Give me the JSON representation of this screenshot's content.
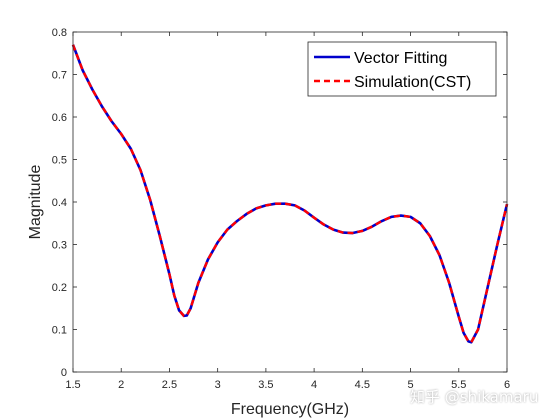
{
  "chart_data": {
    "type": "line",
    "xlabel": "Frequency(GHz)",
    "ylabel": "Magnitude",
    "xlim": [
      1.5,
      6
    ],
    "ylim": [
      0,
      0.8
    ],
    "xticks": [
      1.5,
      2,
      2.5,
      3,
      3.5,
      4,
      4.5,
      5,
      5.5,
      6
    ],
    "xtick_labels": [
      "1.5",
      "2",
      "2.5",
      "3",
      "3.5",
      "4",
      "4.5",
      "5",
      "5.5",
      "6"
    ],
    "yticks": [
      0,
      0.1,
      0.2,
      0.3,
      0.4,
      0.5,
      0.6,
      0.7,
      0.8
    ],
    "ytick_labels": [
      "0",
      "0.1",
      "0.2",
      "0.3",
      "0.4",
      "0.5",
      "0.6",
      "0.7",
      "0.8"
    ],
    "grid": false,
    "legend_position": "top-right",
    "series": [
      {
        "name": "Vector Fitting",
        "color": "#0000cc",
        "style": "solid",
        "x": [
          1.5,
          1.6,
          1.7,
          1.8,
          1.9,
          2.0,
          2.1,
          2.2,
          2.3,
          2.4,
          2.5,
          2.55,
          2.6,
          2.65,
          2.68,
          2.72,
          2.8,
          2.9,
          3.0,
          3.1,
          3.2,
          3.3,
          3.4,
          3.5,
          3.6,
          3.7,
          3.8,
          3.9,
          4.0,
          4.1,
          4.2,
          4.3,
          4.4,
          4.5,
          4.6,
          4.7,
          4.8,
          4.9,
          5.0,
          5.1,
          5.2,
          5.3,
          5.4,
          5.5,
          5.55,
          5.6,
          5.63,
          5.7,
          5.8,
          5.9,
          6.0
        ],
        "values": [
          0.77,
          0.71,
          0.665,
          0.625,
          0.59,
          0.56,
          0.525,
          0.475,
          0.405,
          0.32,
          0.23,
          0.18,
          0.145,
          0.132,
          0.133,
          0.15,
          0.21,
          0.265,
          0.305,
          0.335,
          0.355,
          0.372,
          0.385,
          0.392,
          0.396,
          0.396,
          0.392,
          0.38,
          0.363,
          0.347,
          0.335,
          0.328,
          0.327,
          0.332,
          0.342,
          0.355,
          0.365,
          0.368,
          0.365,
          0.35,
          0.32,
          0.275,
          0.21,
          0.13,
          0.092,
          0.072,
          0.07,
          0.1,
          0.2,
          0.3,
          0.395
        ]
      },
      {
        "name": "Simulation(CST)",
        "color": "#ff0000",
        "style": "dashed",
        "x": [
          1.5,
          1.6,
          1.7,
          1.8,
          1.9,
          2.0,
          2.1,
          2.2,
          2.3,
          2.4,
          2.5,
          2.55,
          2.6,
          2.65,
          2.68,
          2.72,
          2.8,
          2.9,
          3.0,
          3.1,
          3.2,
          3.3,
          3.4,
          3.5,
          3.6,
          3.7,
          3.8,
          3.9,
          4.0,
          4.1,
          4.2,
          4.3,
          4.4,
          4.5,
          4.6,
          4.7,
          4.8,
          4.9,
          5.0,
          5.1,
          5.2,
          5.3,
          5.4,
          5.5,
          5.55,
          5.6,
          5.63,
          5.7,
          5.8,
          5.9,
          6.0
        ],
        "values": [
          0.77,
          0.71,
          0.665,
          0.625,
          0.59,
          0.56,
          0.525,
          0.475,
          0.405,
          0.32,
          0.23,
          0.18,
          0.145,
          0.132,
          0.133,
          0.15,
          0.21,
          0.265,
          0.305,
          0.335,
          0.355,
          0.372,
          0.385,
          0.392,
          0.396,
          0.396,
          0.392,
          0.38,
          0.363,
          0.347,
          0.335,
          0.328,
          0.327,
          0.332,
          0.342,
          0.355,
          0.365,
          0.368,
          0.365,
          0.35,
          0.32,
          0.275,
          0.21,
          0.13,
          0.092,
          0.072,
          0.07,
          0.1,
          0.2,
          0.3,
          0.395
        ]
      }
    ]
  },
  "watermark": "知乎 @shikamaru"
}
